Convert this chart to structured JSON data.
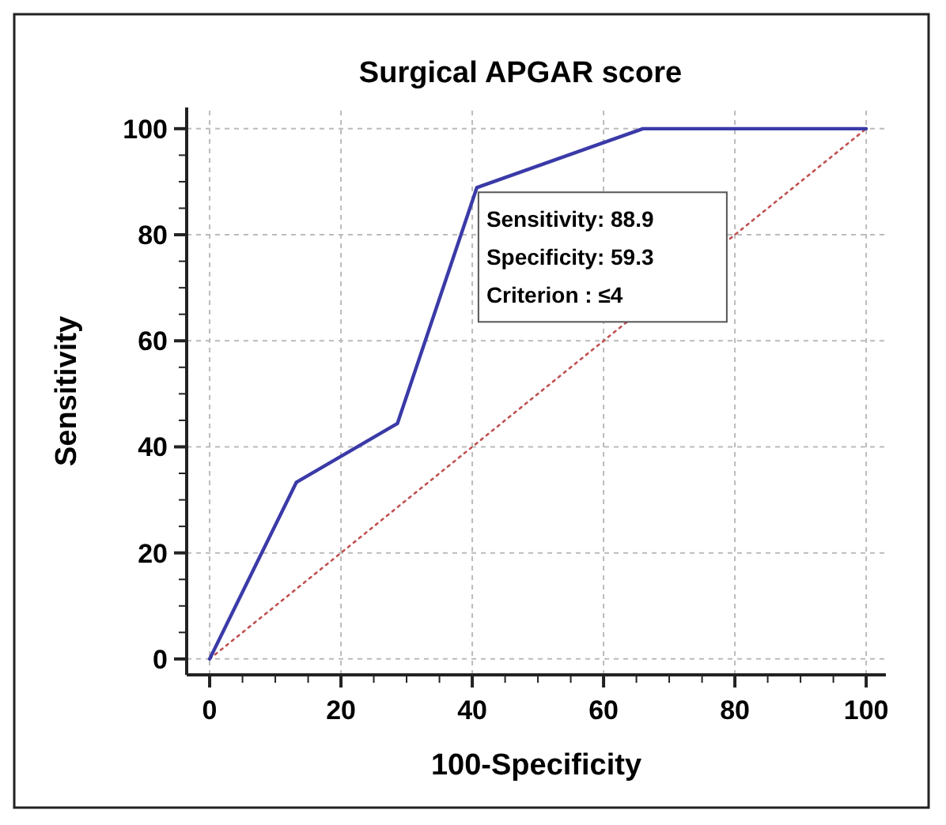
{
  "chart_data": {
    "type": "line",
    "title": "Surgical APGAR score",
    "xlabel": "100-Specificity",
    "ylabel": "Sensitivity",
    "xlim": [
      -3.5,
      103
    ],
    "ylim": [
      -3,
      104
    ],
    "xticks": [
      0,
      20,
      40,
      60,
      80,
      100
    ],
    "yticks": [
      0,
      20,
      40,
      60,
      80,
      100
    ],
    "grid": true,
    "marker": "none",
    "series": [
      {
        "color": "#3a3aa8",
        "line_style": "solid",
        "x": [
          0,
          13.2,
          28.6,
          40.7,
          66,
          100
        ],
        "values": [
          0,
          33.3,
          44.4,
          88.9,
          100,
          100
        ]
      },
      {
        "color": "#c05050",
        "line_style": "dotted",
        "x": [
          0,
          100
        ],
        "values": [
          0,
          100
        ]
      }
    ],
    "annotations": [
      {
        "text": "Sensitivity: 88.9\nSpecificity: 59.3\nCriterion : ≤4",
        "x": 40.7,
        "y": 88.9
      }
    ]
  }
}
